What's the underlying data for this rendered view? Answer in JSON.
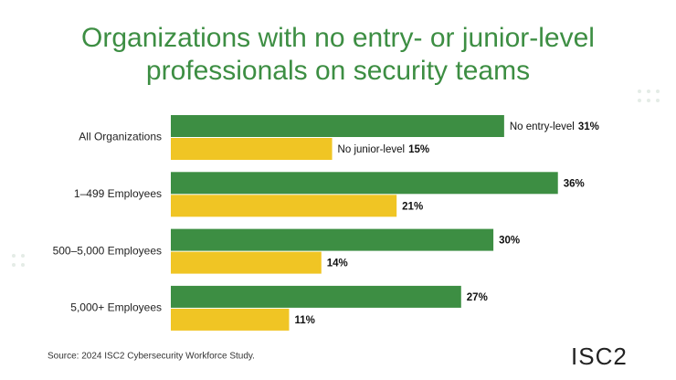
{
  "chart_data": {
    "type": "bar",
    "orientation": "horizontal",
    "title": "Organizations with no entry- or junior-level professionals on security teams",
    "categories": [
      "All Organizations",
      "1–499 Employees",
      "500–5,000 Employees",
      "5,000+ Employees"
    ],
    "series": [
      {
        "name": "No entry-level",
        "color": "#3d8e43",
        "values": [
          31,
          36,
          30,
          27
        ],
        "value_labels": [
          "31%",
          "36%",
          "30%",
          "27%"
        ]
      },
      {
        "name": "No junior-level",
        "color": "#f0c524",
        "values": [
          15,
          21,
          14,
          11
        ],
        "value_labels": [
          "15%",
          "21%",
          "14%",
          "11%"
        ]
      }
    ],
    "source": "Source: 2024 ISC2 Cybersecurity Workforce Study.",
    "logo": "ISC2"
  }
}
